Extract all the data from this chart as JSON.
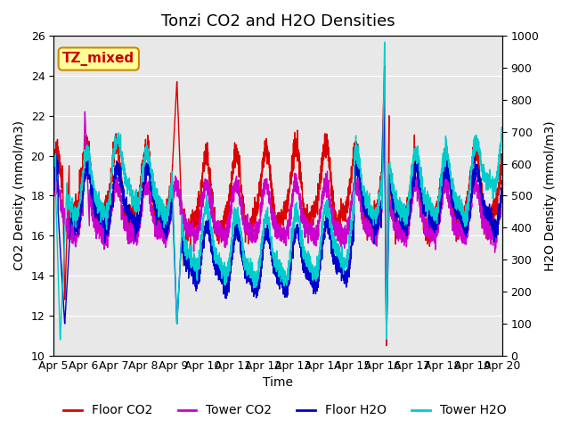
{
  "title": "Tonzi CO2 and H2O Densities",
  "xlabel": "Time",
  "ylabel_left": "CO2 Density (mmol/m3)",
  "ylabel_right": "H2O Density (mmol/m3)",
  "annotation": "TZ_mixed",
  "annotation_color": "#cc0000",
  "annotation_bg": "#ffff99",
  "annotation_border": "#cc8800",
  "ylim_left": [
    10,
    26
  ],
  "ylim_right": [
    0,
    1000
  ],
  "background_color": "#e8e8e8",
  "title_fontsize": 13,
  "axis_fontsize": 10,
  "tick_fontsize": 9,
  "legend_fontsize": 10,
  "colors": {
    "floor_co2": "#dd0000",
    "tower_co2": "#cc00cc",
    "floor_h2o": "#0000cc",
    "tower_h2o": "#00cccc"
  },
  "linewidth": 1.0,
  "n_points": 3600,
  "xtick_days": [
    5,
    6,
    7,
    8,
    9,
    10,
    11,
    12,
    13,
    14,
    15,
    16,
    17,
    18,
    19,
    20
  ],
  "xtick_labels": [
    "Apr 5",
    "Apr 6",
    "Apr 7",
    "Apr 8",
    "Apr 9",
    "Apr 10",
    "Apr 11",
    "Apr 12",
    "Apr 13",
    "Apr 14",
    "Apr 15",
    "Apr 16",
    "Apr 17",
    "Apr 18",
    "Apr 19",
    "Apr 20"
  ]
}
